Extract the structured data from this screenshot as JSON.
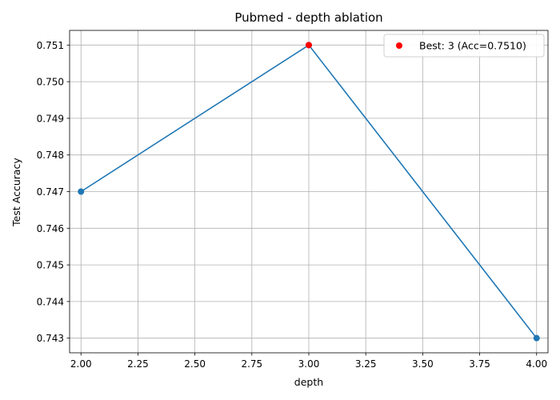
{
  "chart_data": {
    "type": "line",
    "title": "Pubmed - depth ablation",
    "xlabel": "depth",
    "ylabel": "Test Accuracy",
    "xlim": [
      1.95,
      4.05
    ],
    "ylim": [
      0.7426,
      0.7514
    ],
    "x_ticks": [
      2.0,
      2.25,
      2.5,
      2.75,
      3.0,
      3.25,
      3.5,
      3.75,
      4.0
    ],
    "x_tick_labels": [
      "2.00",
      "2.25",
      "2.50",
      "2.75",
      "3.00",
      "3.25",
      "3.50",
      "3.75",
      "4.00"
    ],
    "y_ticks": [
      0.743,
      0.744,
      0.745,
      0.746,
      0.747,
      0.748,
      0.749,
      0.75,
      0.751
    ],
    "y_tick_labels": [
      "0.743",
      "0.744",
      "0.745",
      "0.746",
      "0.747",
      "0.748",
      "0.749",
      "0.750",
      "0.751"
    ],
    "grid": true,
    "legend_position": "top-right",
    "series": [
      {
        "x": [
          2,
          3,
          4
        ],
        "y": [
          0.747,
          0.751,
          0.743
        ],
        "color": "#1f77b4",
        "marker": "circle"
      }
    ],
    "best_point": {
      "label": "Best: 3 (Acc=0.7510)",
      "x": 3,
      "y": 0.751,
      "color": "#ff0000"
    }
  }
}
